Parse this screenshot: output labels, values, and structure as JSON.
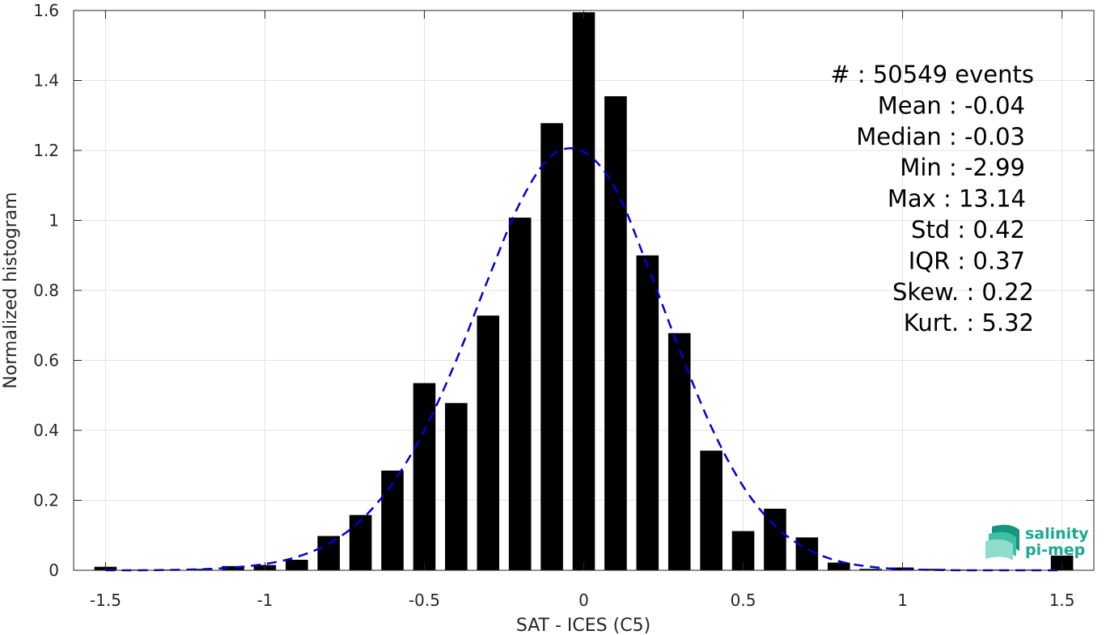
{
  "chart_data": {
    "type": "bar",
    "xlabel": "SAT - ICES (C5)",
    "ylabel": "Normalized histogram",
    "xlim": [
      -1.6,
      1.6
    ],
    "ylim": [
      0,
      1.6
    ],
    "xticks": [
      -1.5,
      -1,
      -0.5,
      0,
      0.5,
      1,
      1.5
    ],
    "xtick_labels": [
      "-1.5",
      "-1",
      "-0.5",
      "0",
      "0.5",
      "1",
      "1.5"
    ],
    "yticks": [
      0,
      0.2,
      0.4,
      0.6,
      0.8,
      1,
      1.2,
      1.4,
      1.6
    ],
    "ytick_labels": [
      "0",
      "0.2",
      "0.4",
      "0.6",
      "0.8",
      "1",
      "1.2",
      "1.4",
      "1.6"
    ],
    "grid": true,
    "bar_width": 0.07,
    "bar_color": "#000000",
    "bars": {
      "x": [
        -1.5,
        -1.4,
        -1.3,
        -1.2,
        -1.1,
        -1.0,
        -0.9,
        -0.8,
        -0.7,
        -0.6,
        -0.5,
        -0.4,
        -0.3,
        -0.2,
        -0.1,
        0.0,
        0.1,
        0.2,
        0.3,
        0.4,
        0.5,
        0.6,
        0.7,
        0.8,
        0.9,
        1.0,
        1.1,
        1.2,
        1.3,
        1.4,
        1.5
      ],
      "values": [
        0.01,
        0.002,
        0.002,
        0.004,
        0.012,
        0.015,
        0.03,
        0.098,
        0.158,
        0.285,
        0.535,
        0.478,
        0.728,
        1.008,
        1.278,
        1.595,
        1.355,
        0.9,
        0.678,
        0.342,
        0.112,
        0.176,
        0.094,
        0.022,
        0.004,
        0.008,
        0.004,
        0.002,
        0.002,
        0.002,
        0.042
      ]
    },
    "fit_curve": {
      "style": "dashed",
      "color": "#0000dd",
      "x": [
        -1.5,
        -1.4,
        -1.3,
        -1.2,
        -1.1,
        -1.0,
        -0.9,
        -0.8,
        -0.7,
        -0.6,
        -0.5,
        -0.4,
        -0.3,
        -0.2,
        -0.1,
        0.0,
        0.1,
        0.2,
        0.3,
        0.4,
        0.5,
        0.6,
        0.7,
        0.8,
        0.9,
        1.0,
        1.1,
        1.2,
        1.3,
        1.4,
        1.5
      ],
      "values": [
        0.0,
        0.0,
        0.001,
        0.003,
        0.008,
        0.018,
        0.038,
        0.076,
        0.142,
        0.248,
        0.4,
        0.6,
        0.832,
        1.05,
        1.186,
        1.196,
        1.09,
        0.87,
        0.632,
        0.41,
        0.24,
        0.127,
        0.061,
        0.026,
        0.01,
        0.003,
        0.001,
        0.0,
        0.0,
        0.0,
        0.0
      ]
    },
    "stats": [
      {
        "label": "#  : 50549 events"
      },
      {
        "label": "Mean : -0.04"
      },
      {
        "label": "Median : -0.03"
      },
      {
        "label": "Min : -2.99"
      },
      {
        "label": "Max : 13.14"
      },
      {
        "label": "Std : 0.42"
      },
      {
        "label": "IQR : 0.37"
      },
      {
        "label": "Skew. : 0.22"
      },
      {
        "label": "Kurt. : 5.32"
      }
    ]
  },
  "logo": {
    "line1": "salinity",
    "line2": "pi-mep",
    "color": "#1aa893"
  }
}
